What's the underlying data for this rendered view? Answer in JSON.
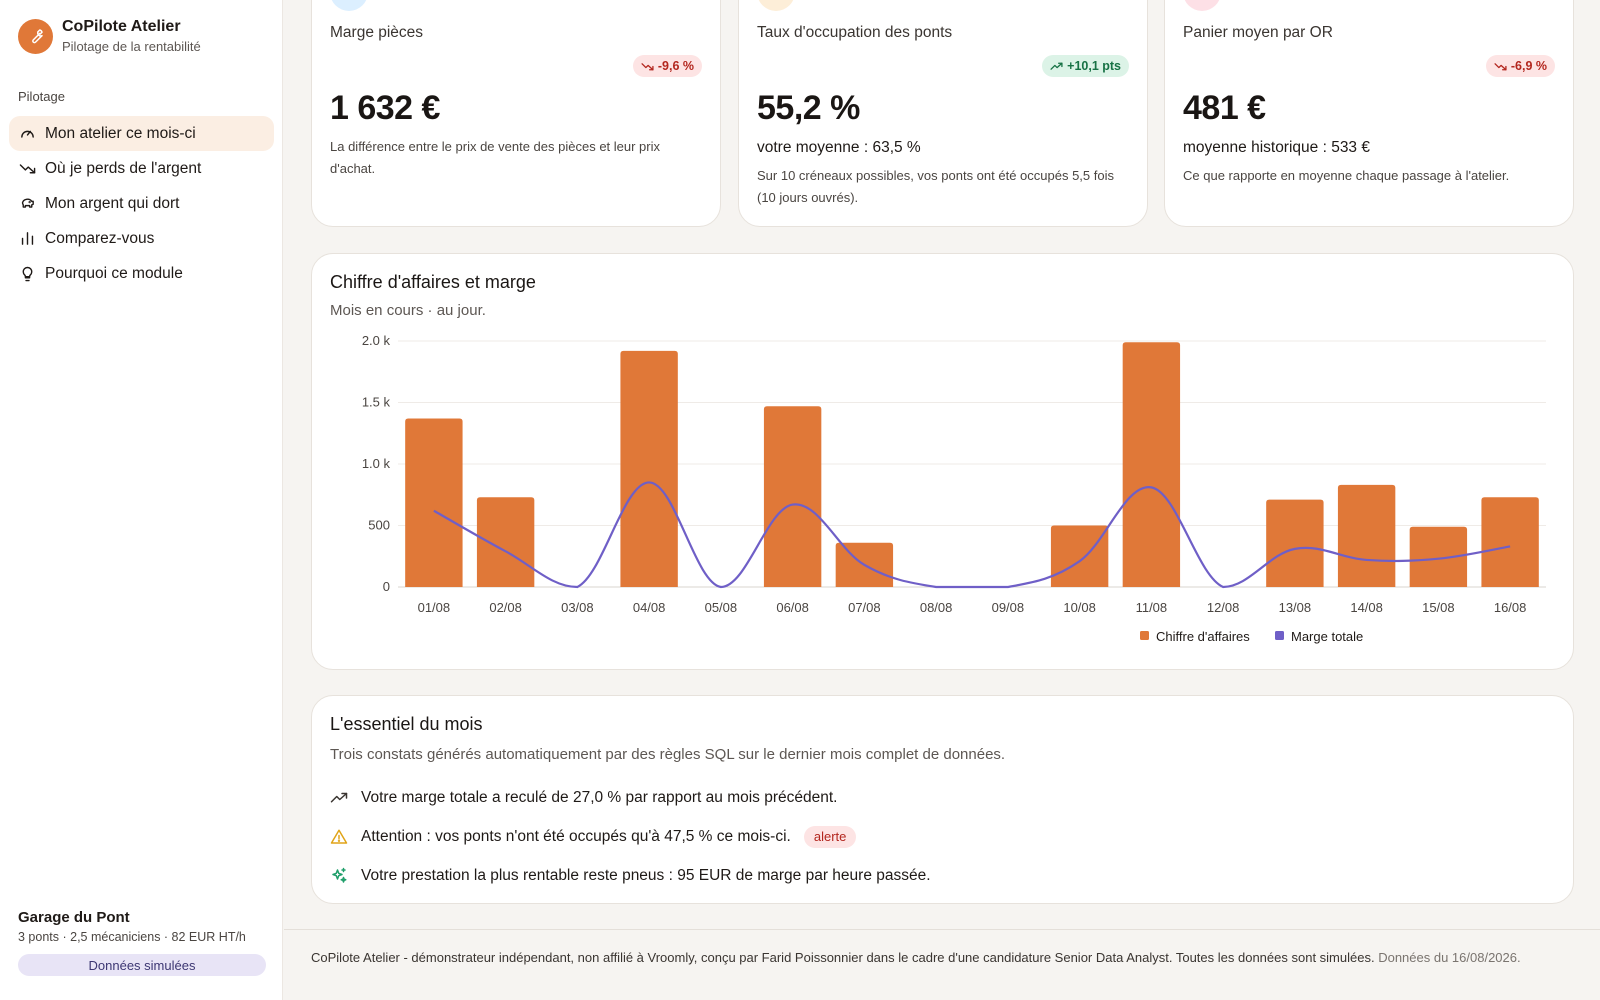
{
  "brand": {
    "name": "CoPilote Atelier",
    "subtitle": "Pilotage de la rentabilité"
  },
  "sidebar": {
    "section": "Pilotage",
    "items": [
      {
        "label": "Mon atelier ce mois-ci",
        "icon": "gauge-icon",
        "active": true
      },
      {
        "label": "Où je perds de l'argent",
        "icon": "trending-down-icon",
        "active": false
      },
      {
        "label": "Mon argent qui dort",
        "icon": "piggy-bank-icon",
        "active": false
      },
      {
        "label": "Comparez-vous",
        "icon": "bar-chart-icon",
        "active": false
      },
      {
        "label": "Pourquoi ce module",
        "icon": "lightbulb-icon",
        "active": false
      }
    ],
    "garage": {
      "name": "Garage du Pont",
      "meta": "3 ponts · 2,5 mécaniciens · 82 EUR HT/h",
      "badge": "Données simulées"
    }
  },
  "kpis": [
    {
      "label": "Marge pièces",
      "trend": "-9,6 %",
      "trend_dir": "down",
      "value": "1 632 €",
      "subline": "",
      "desc": "La différence entre le prix de vente des pièces et leur prix d'achat.",
      "icon_color": "#dcefff"
    },
    {
      "label": "Taux d'occupation des ponts",
      "trend": "+10,1 pts",
      "trend_dir": "up",
      "value": "55,2 %",
      "subline": "votre moyenne : 63,5 %",
      "desc": "Sur 10 créneaux possibles, vos ponts ont été occupés 5,5 fois (10 jours ouvrés).",
      "icon_color": "#fdeed8"
    },
    {
      "label": "Panier moyen par OR",
      "trend": "-6,9 %",
      "trend_dir": "down",
      "value": "481 €",
      "subline": "moyenne historique : 533 €",
      "desc": "Ce que rapporte en moyenne chaque passage à l'atelier.",
      "icon_color": "#fde0e6"
    }
  ],
  "chart_card": {
    "title": "Chiffre d'affaires et marge",
    "subtitle": "Mois en cours · au jour."
  },
  "chart_data": {
    "type": "bar",
    "categories": [
      "01/08",
      "02/08",
      "03/08",
      "04/08",
      "05/08",
      "06/08",
      "07/08",
      "08/08",
      "09/08",
      "10/08",
      "11/08",
      "12/08",
      "13/08",
      "14/08",
      "15/08",
      "16/08"
    ],
    "series": [
      {
        "name": "Chiffre d'affaires",
        "type": "bar",
        "color": "#e07838",
        "values": [
          1370,
          730,
          0,
          1920,
          0,
          1470,
          360,
          0,
          0,
          500,
          1990,
          0,
          710,
          830,
          490,
          730
        ]
      },
      {
        "name": "Marge totale",
        "type": "line",
        "color": "#6f5fc7",
        "values": [
          620,
          290,
          0,
          850,
          0,
          670,
          180,
          0,
          0,
          210,
          810,
          0,
          310,
          220,
          230,
          330
        ]
      }
    ],
    "yticks": [
      "0",
      "500",
      "1.0 k",
      "1.5 k",
      "2.0 k"
    ],
    "ylim": [
      0,
      2000
    ],
    "grid": true,
    "legend": "bottom"
  },
  "essentials": {
    "title": "L'essentiel du mois",
    "subtitle": "Trois constats générés automatiquement par des règles SQL sur le dernier mois complet de données.",
    "items": [
      {
        "icon": "trending-up-icon",
        "text": "Votre marge totale a reculé de 27,0 % par rapport au mois précédent.",
        "tag": ""
      },
      {
        "icon": "warning-icon",
        "text": "Attention : vos ponts n'ont été occupés qu'à 47,5 % ce mois-ci.",
        "tag": "alerte"
      },
      {
        "icon": "sparkles-icon",
        "text": "Votre prestation la plus rentable reste pneus : 95 EUR de marge par heure passée.",
        "tag": ""
      }
    ]
  },
  "footer": {
    "text": "CoPilote Atelier - démonstrateur indépendant, non affilié à Vroomly, conçu par Farid Poissonnier dans le cadre d'une candidature Senior Data Analyst. Toutes les données sont simulées.",
    "date_note": "Données du 16/08/2026."
  }
}
